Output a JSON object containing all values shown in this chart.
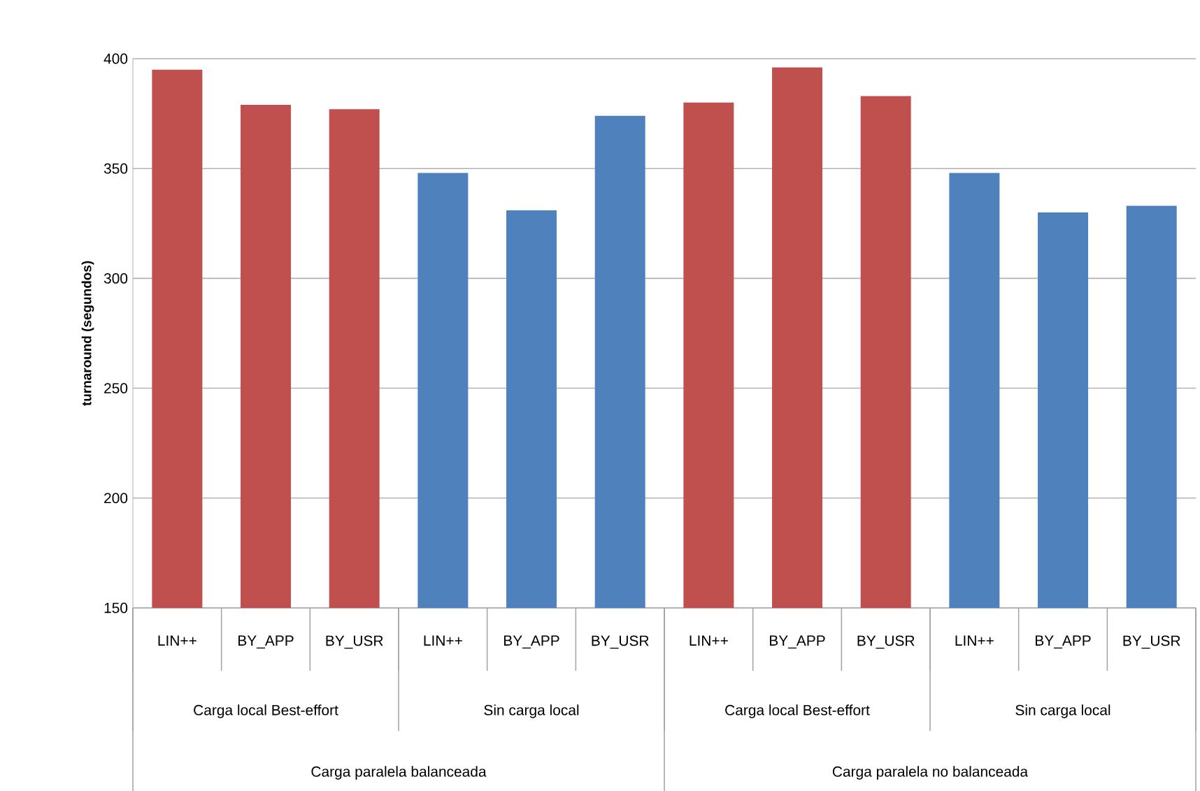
{
  "chart_data": {
    "type": "bar",
    "ylabel": "turnaround (segundos)",
    "categories": [
      "LIN++",
      "BY_APP",
      "BY_USR",
      "LIN++",
      "BY_APP",
      "BY_USR",
      "LIN++",
      "BY_APP",
      "BY_USR",
      "LIN++",
      "BY_APP",
      "BY_USR"
    ],
    "values": [
      395,
      379,
      377,
      348,
      331,
      374,
      380,
      396,
      383,
      348,
      330,
      333
    ],
    "colors": [
      "#c0504d",
      "#c0504d",
      "#c0504d",
      "#4f81bd",
      "#4f81bd",
      "#4f81bd",
      "#c0504d",
      "#c0504d",
      "#c0504d",
      "#4f81bd",
      "#4f81bd",
      "#4f81bd"
    ],
    "annotations": [
      "Carga local Best-effort",
      "Sin carga local",
      "Carga local Best-effort",
      "Sin carga local",
      "Carga paralela balanceada",
      "Carga paralela no balanceada"
    ],
    "ylim": [
      150,
      400
    ],
    "yticks": [
      150,
      200,
      250,
      300,
      350,
      400
    ],
    "grid": "y"
  }
}
